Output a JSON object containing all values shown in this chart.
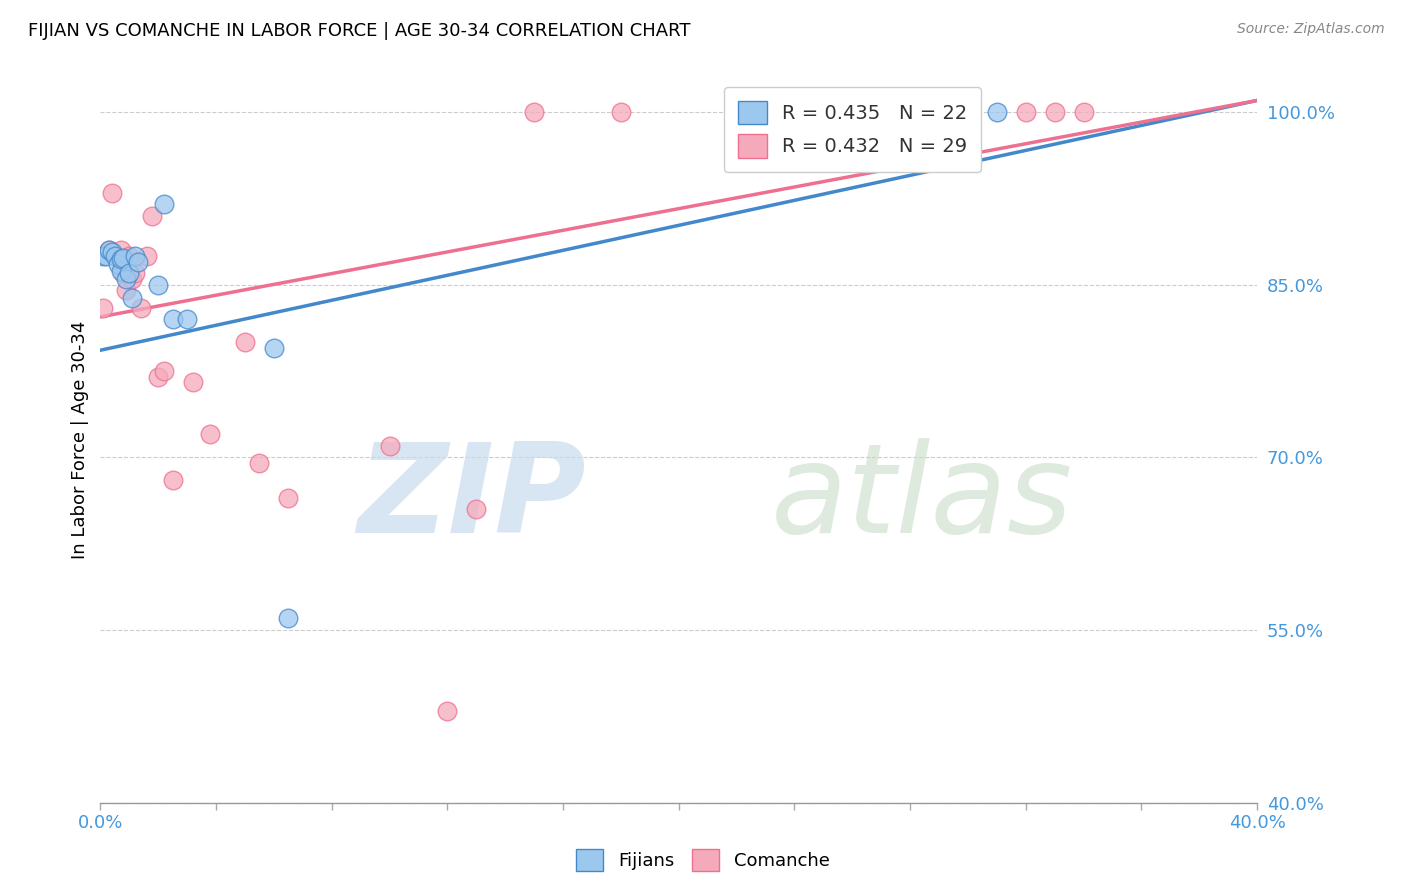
{
  "title": "FIJIAN VS COMANCHE IN LABOR FORCE | AGE 30-34 CORRELATION CHART",
  "source": "Source: ZipAtlas.com",
  "ylabel": "In Labor Force | Age 30-34",
  "xmin": 0.0,
  "xmax": 0.4,
  "ymin": 0.4,
  "ymax": 1.03,
  "yticks": [
    0.4,
    0.55,
    0.7,
    0.85,
    1.0
  ],
  "ytick_labels": [
    "40.0%",
    "55.0%",
    "70.0%",
    "85.0%",
    "100.0%"
  ],
  "fijian_R": 0.435,
  "fijian_N": 22,
  "comanche_R": 0.432,
  "comanche_N": 29,
  "fijian_color": "#9DC8EE",
  "comanche_color": "#F5AABB",
  "fijian_line_color": "#4488CC",
  "comanche_line_color": "#EE7090",
  "fijian_x": [
    0.001,
    0.002,
    0.003,
    0.004,
    0.005,
    0.006,
    0.007,
    0.007,
    0.008,
    0.009,
    0.01,
    0.011,
    0.012,
    0.013,
    0.02,
    0.022,
    0.025,
    0.03,
    0.06,
    0.065,
    0.29,
    0.31
  ],
  "fijian_y": [
    0.875,
    0.875,
    0.88,
    0.878,
    0.875,
    0.868,
    0.862,
    0.872,
    0.873,
    0.855,
    0.86,
    0.838,
    0.875,
    0.87,
    0.85,
    0.92,
    0.82,
    0.82,
    0.795,
    0.56,
    1.0,
    1.0
  ],
  "comanche_x": [
    0.001,
    0.003,
    0.004,
    0.005,
    0.007,
    0.008,
    0.009,
    0.01,
    0.011,
    0.012,
    0.014,
    0.016,
    0.018,
    0.02,
    0.022,
    0.025,
    0.032,
    0.038,
    0.05,
    0.055,
    0.065,
    0.1,
    0.12,
    0.13,
    0.15,
    0.18,
    0.32,
    0.33,
    0.34
  ],
  "comanche_y": [
    0.83,
    0.88,
    0.93,
    0.875,
    0.88,
    0.86,
    0.845,
    0.875,
    0.855,
    0.86,
    0.83,
    0.875,
    0.91,
    0.77,
    0.775,
    0.68,
    0.765,
    0.72,
    0.8,
    0.695,
    0.665,
    0.71,
    0.48,
    0.655,
    1.0,
    1.0,
    1.0,
    1.0,
    1.0
  ],
  "fijian_trend_x0": 0.0,
  "fijian_trend_y0": 0.793,
  "fijian_trend_x1": 0.4,
  "fijian_trend_y1": 1.01,
  "comanche_trend_x0": 0.0,
  "comanche_trend_y0": 0.822,
  "comanche_trend_x1": 0.4,
  "comanche_trend_y1": 1.01
}
